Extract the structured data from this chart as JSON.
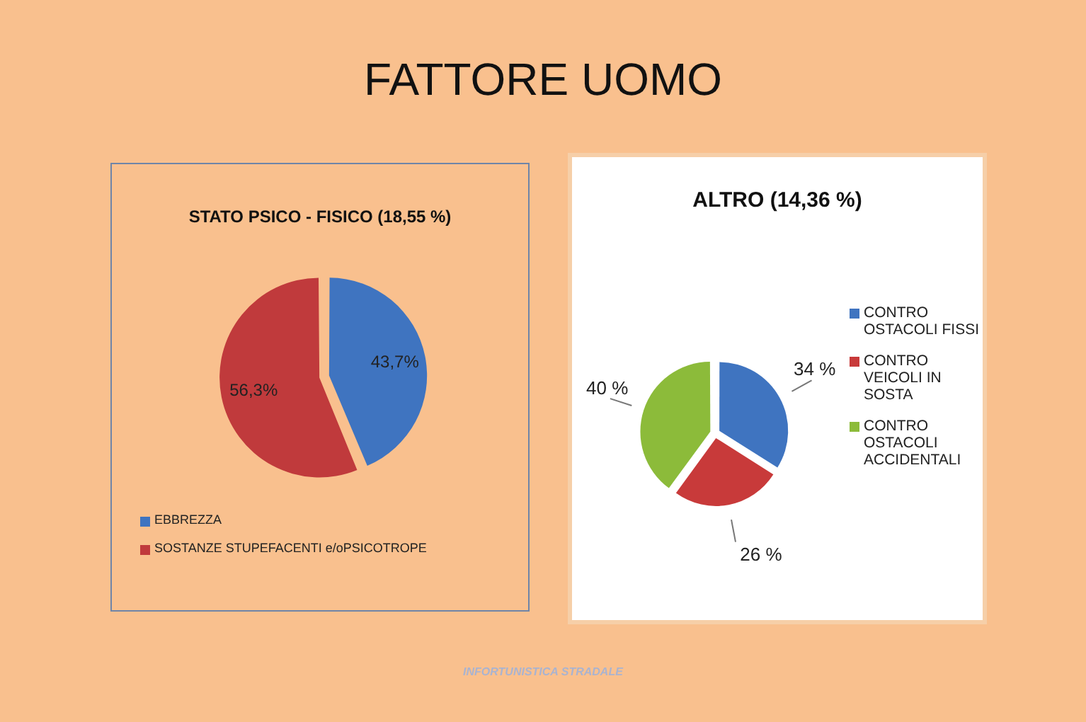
{
  "chart_data": [
    {
      "type": "other",
      "title": "FATTORE UOMO",
      "annotations": [
        "INFORTUNISTICA STRADALE"
      ]
    },
    {
      "type": "pie",
      "title": "STATO PSICO  - FISICO (18,55 %)",
      "categories": [
        "EBBREZZA",
        "SOSTANZE STUPEFACENTI e/oPSICOTROPE"
      ],
      "values": [
        43.7,
        56.3
      ],
      "colors": [
        "#3f74c0",
        "#c03a3c"
      ],
      "value_labels": [
        "43,7%",
        "56,3%"
      ],
      "legend": "bottom"
    },
    {
      "type": "pie",
      "title": "ALTRO (14,36 %)",
      "categories": [
        "CONTRO OSTACOLI FISSI",
        "CONTRO VEICOLI IN SOSTA",
        "CONTRO OSTACOLI ACCIDENTALI"
      ],
      "values": [
        34,
        26,
        40
      ],
      "colors": [
        "#3f74c0",
        "#c83a3a",
        "#8cbb3a"
      ],
      "value_labels": [
        "34 %",
        "26 %",
        "40 %"
      ],
      "legend": "right"
    }
  ]
}
